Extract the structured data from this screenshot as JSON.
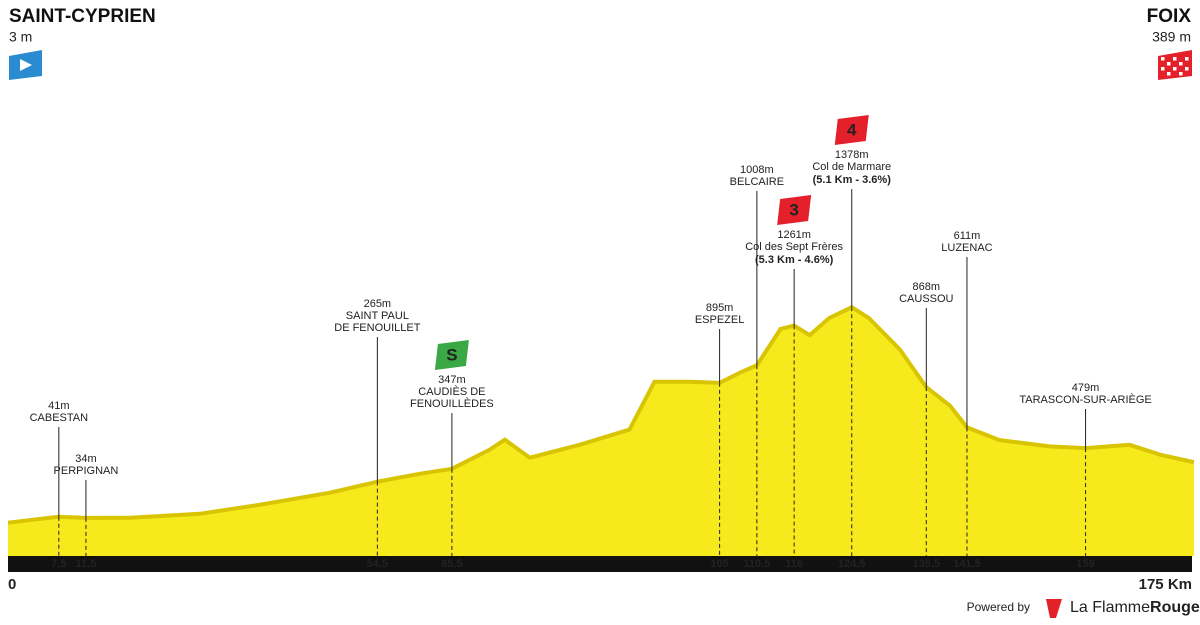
{
  "chart_data": {
    "type": "profile",
    "start": {
      "name": "SAINT-CYPRIEN",
      "alt": "3 m"
    },
    "finish": {
      "name": "FOIX",
      "alt": "389 m"
    },
    "x": [
      0,
      6.2,
      7.5,
      11.5,
      18,
      28.3,
      37.2,
      47.5,
      54.5,
      60.8,
      65.5,
      71.1,
      73.3,
      77,
      84.4,
      91.7,
      95.4,
      100.6,
      105,
      108,
      110.5,
      114,
      116,
      118.3,
      121.2,
      124.5,
      127,
      131.6,
      135.5,
      139,
      141.5,
      146.3,
      153.7,
      159,
      165.5,
      170,
      175
    ],
    "values": [
      3,
      35,
      41,
      34,
      35,
      60,
      118,
      195,
      265,
      316,
      347,
      470,
      533,
      418,
      501,
      597,
      903,
      903,
      895,
      960,
      1008,
      1240,
      1261,
      1200,
      1310,
      1378,
      1310,
      1108,
      868,
      750,
      611,
      530,
      490,
      479,
      500,
      437,
      389
    ],
    "color": "#f6ea1c",
    "xlim": [
      0,
      175
    ],
    "ylim": [
      -190,
      2700
    ],
    "xticks": [
      0,
      {
        "value": 175,
        "label": "175 Km"
      }
    ],
    "waypoints": [
      {
        "km": {
          "value": 7.5,
          "label": "7,5"
        },
        "alt": {
          "value": 41,
          "label": "41m"
        },
        "name": [
          "CABESTAN"
        ]
      },
      {
        "km": {
          "value": 11.5,
          "label": "11,5"
        },
        "alt": {
          "value": 34,
          "label": "34m"
        },
        "name": [
          "PERPIGNAN"
        ]
      },
      {
        "km": {
          "value": 54.5,
          "label": "54,5"
        },
        "alt": {
          "value": 265,
          "label": "265m"
        },
        "name": [
          "SAINT PAUL",
          "DE FENOUILLET"
        ]
      },
      {
        "km": {
          "value": 65.5,
          "label": "65,5"
        },
        "alt": {
          "value": 347,
          "label": "347m"
        },
        "name": [
          "CAUDIÈS DE",
          "FENOUILLÈDES"
        ],
        "badge": {
          "text": "S",
          "color": "#3aa845"
        }
      },
      {
        "km": {
          "value": 105,
          "label": "105"
        },
        "alt": {
          "value": 895,
          "label": "895m"
        },
        "name": [
          "ESPEZEL"
        ]
      },
      {
        "km": {
          "value": 110.5,
          "label": "110,5"
        },
        "alt": {
          "value": 1008,
          "label": "1008m"
        },
        "name": [
          "BELCAIRE"
        ]
      },
      {
        "km": {
          "value": 116,
          "label": "116"
        },
        "alt": {
          "value": 1261,
          "label": "1261m"
        },
        "name": [
          "Col des Sept Frères"
        ],
        "detail": "(5.3 Km - 4.6%)",
        "badge": {
          "text": "3",
          "color": "#e4202b"
        }
      },
      {
        "km": {
          "value": 124.5,
          "label": "124,5"
        },
        "alt": {
          "value": 1378,
          "label": "1378m"
        },
        "name": [
          "Col de Marmare"
        ],
        "detail": "(5.1 Km - 3.6%)",
        "badge": {
          "text": "4",
          "color": "#e4202b"
        }
      },
      {
        "km": {
          "value": 135.5,
          "label": "135,5"
        },
        "alt": {
          "value": 868,
          "label": "868m"
        },
        "name": [
          "CAUSSOU"
        ]
      },
      {
        "km": {
          "value": 141.5,
          "label": "141,5"
        },
        "alt": {
          "value": 611,
          "label": "611m"
        },
        "name": [
          "LUZENAC"
        ]
      },
      {
        "km": {
          "value": 159,
          "label": "159"
        },
        "alt": {
          "value": 479,
          "label": "479m"
        },
        "name": [
          "TARASCON-SUR-ARIÈGE"
        ]
      }
    ],
    "credit": {
      "powered": "Powered by",
      "brand": [
        "La Flamme",
        "Rouge"
      ]
    }
  }
}
